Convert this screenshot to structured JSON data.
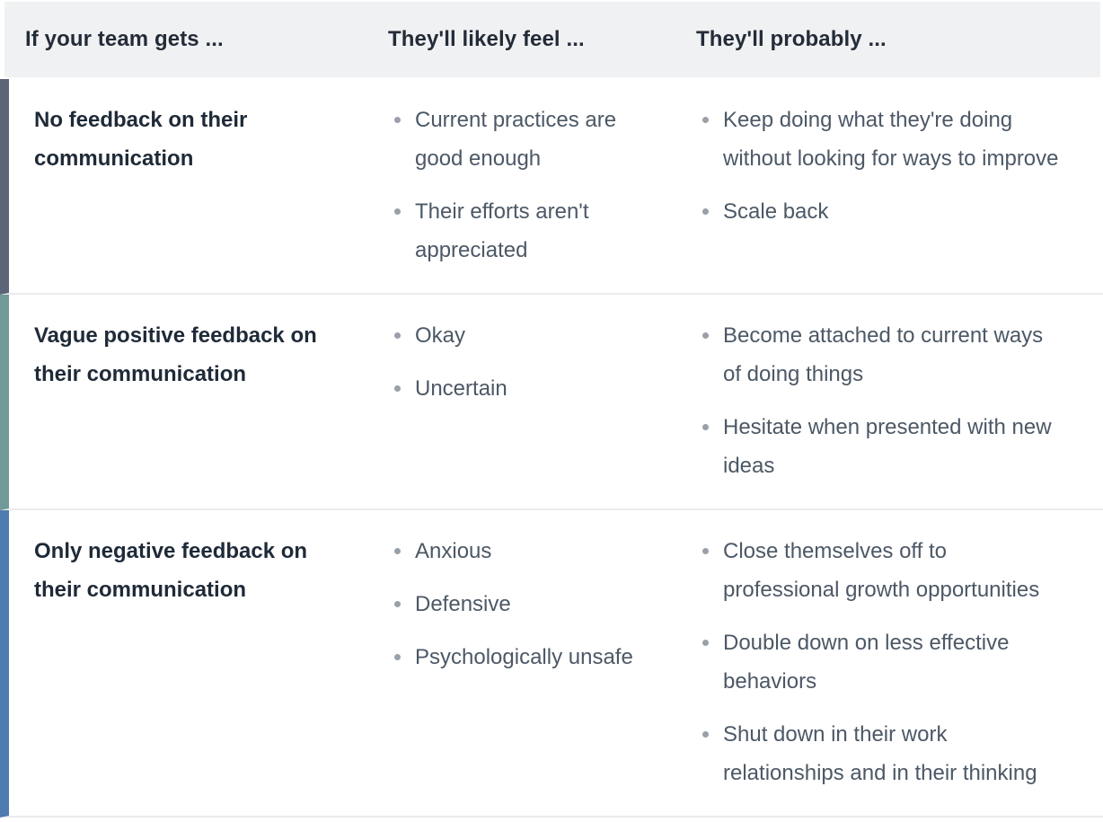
{
  "table": {
    "headers": [
      {
        "label": "If your team gets ..."
      },
      {
        "label": "They'll likely feel ..."
      },
      {
        "label": "They'll probably ..."
      }
    ],
    "rows": [
      {
        "accent_color": "#5c6577",
        "condition": "No feedback on their communication",
        "feel": [
          "Current practices are good enough",
          "Their efforts aren't appreciated"
        ],
        "probably": [
          "Keep doing what they're doing without looking for ways to improve",
          "Scale back"
        ]
      },
      {
        "accent_color": "#70999a",
        "condition": "Vague positive feedback on their communication",
        "feel": [
          "Okay",
          "Uncertain"
        ],
        "probably": [
          "Become attached to current ways of doing things",
          "Hesitate when presented with new ideas"
        ]
      },
      {
        "accent_color": "#4e7bb0",
        "condition": "Only negative feedback on their communication",
        "feel": [
          "Anxious",
          "Defensive",
          "Psychologically unsafe"
        ],
        "probably": [
          "Close themselves off to professional growth opportunities",
          "Double down on less effective behaviors",
          "Shut down in their work relationships and in their thinking"
        ]
      }
    ],
    "colors": {
      "header_bg": "#f0f1f3",
      "header_text": "#242c38",
      "row_border": "#eaebed",
      "condition_text": "#1f2a38",
      "bullet_text": "#4c5866",
      "bullet_dot": "#9aa0a8"
    }
  }
}
